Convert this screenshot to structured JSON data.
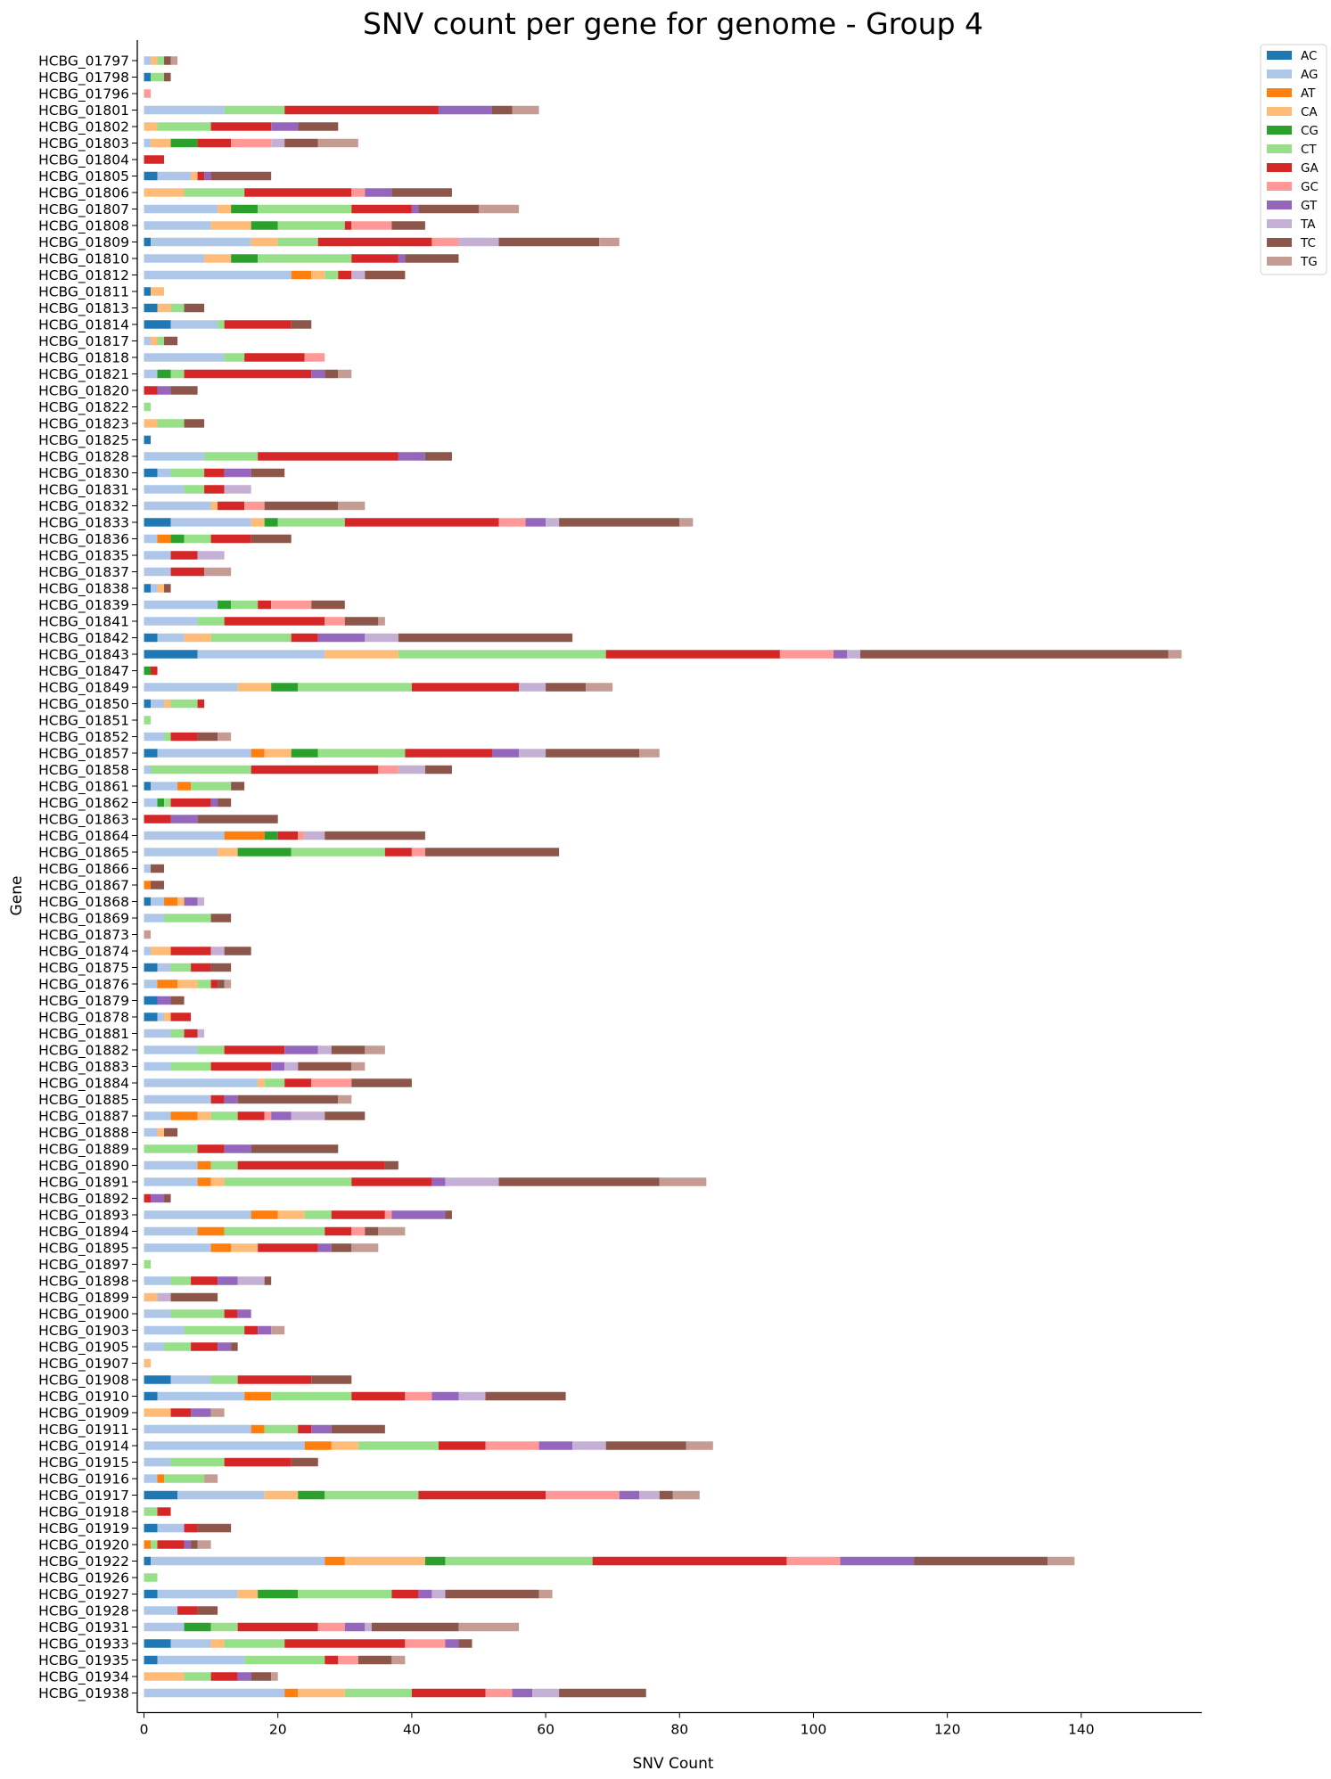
{
  "chart_data": {
    "type": "bar",
    "orientation": "horizontal",
    "stacked": true,
    "title": "SNV count per gene for genome - Group 4",
    "xlabel": "SNV Count",
    "ylabel": "Gene",
    "xlim": [
      -1,
      158
    ],
    "xticks": [
      0,
      20,
      40,
      60,
      80,
      100,
      120,
      140
    ],
    "grid": false,
    "legend_position": "outside-top-right",
    "categories": [
      "HCBG_01797",
      "HCBG_01798",
      "HCBG_01796",
      "HCBG_01801",
      "HCBG_01802",
      "HCBG_01803",
      "HCBG_01804",
      "HCBG_01805",
      "HCBG_01806",
      "HCBG_01807",
      "HCBG_01808",
      "HCBG_01809",
      "HCBG_01810",
      "HCBG_01812",
      "HCBG_01811",
      "HCBG_01813",
      "HCBG_01814",
      "HCBG_01817",
      "HCBG_01818",
      "HCBG_01821",
      "HCBG_01820",
      "HCBG_01822",
      "HCBG_01823",
      "HCBG_01825",
      "HCBG_01828",
      "HCBG_01830",
      "HCBG_01831",
      "HCBG_01832",
      "HCBG_01833",
      "HCBG_01836",
      "HCBG_01835",
      "HCBG_01837",
      "HCBG_01838",
      "HCBG_01839",
      "HCBG_01841",
      "HCBG_01842",
      "HCBG_01843",
      "HCBG_01847",
      "HCBG_01849",
      "HCBG_01850",
      "HCBG_01851",
      "HCBG_01852",
      "HCBG_01857",
      "HCBG_01858",
      "HCBG_01861",
      "HCBG_01862",
      "HCBG_01863",
      "HCBG_01864",
      "HCBG_01865",
      "HCBG_01866",
      "HCBG_01867",
      "HCBG_01868",
      "HCBG_01869",
      "HCBG_01873",
      "HCBG_01874",
      "HCBG_01875",
      "HCBG_01876",
      "HCBG_01879",
      "HCBG_01878",
      "HCBG_01881",
      "HCBG_01882",
      "HCBG_01883",
      "HCBG_01884",
      "HCBG_01885",
      "HCBG_01887",
      "HCBG_01888",
      "HCBG_01889",
      "HCBG_01890",
      "HCBG_01891",
      "HCBG_01892",
      "HCBG_01893",
      "HCBG_01894",
      "HCBG_01895",
      "HCBG_01897",
      "HCBG_01898",
      "HCBG_01899",
      "HCBG_01900",
      "HCBG_01903",
      "HCBG_01905",
      "HCBG_01907",
      "HCBG_01908",
      "HCBG_01910",
      "HCBG_01909",
      "HCBG_01911",
      "HCBG_01914",
      "HCBG_01915",
      "HCBG_01916",
      "HCBG_01917",
      "HCBG_01918",
      "HCBG_01919",
      "HCBG_01920",
      "HCBG_01922",
      "HCBG_01926",
      "HCBG_01927",
      "HCBG_01928",
      "HCBG_01931",
      "HCBG_01933",
      "HCBG_01935",
      "HCBG_01934",
      "HCBG_01938"
    ],
    "series": [
      {
        "name": "AC",
        "color": "#1f77b4",
        "values": [
          0,
          1,
          0,
          0,
          0,
          0,
          0,
          2,
          0,
          0,
          0,
          1,
          0,
          0,
          1,
          2,
          4,
          0,
          0,
          0,
          0,
          0,
          0,
          1,
          0,
          2,
          0,
          0,
          4,
          0,
          0,
          0,
          1,
          0,
          0,
          2,
          8,
          0,
          0,
          1,
          0,
          0,
          2,
          0,
          1,
          0,
          0,
          0,
          0,
          0,
          0,
          1,
          0,
          0,
          0,
          2,
          0,
          2,
          2,
          0,
          0,
          0,
          0,
          0,
          0,
          0,
          0,
          0,
          0,
          0,
          0,
          0,
          0,
          0,
          0,
          0,
          0,
          0,
          0,
          0,
          4,
          2,
          0,
          0,
          0,
          0,
          0,
          5,
          0,
          2,
          0,
          1,
          0,
          2,
          0,
          0,
          4,
          2,
          0,
          0
        ]
      },
      {
        "name": "AG",
        "color": "#aec7e8",
        "values": [
          1,
          0,
          0,
          12,
          0,
          1,
          0,
          5,
          0,
          11,
          10,
          15,
          9,
          22,
          0,
          0,
          7,
          1,
          12,
          2,
          0,
          0,
          0,
          0,
          9,
          2,
          6,
          10,
          12,
          2,
          4,
          4,
          1,
          11,
          8,
          4,
          19,
          0,
          14,
          2,
          0,
          3,
          14,
          1,
          4,
          2,
          0,
          12,
          11,
          1,
          0,
          2,
          3,
          0,
          1,
          2,
          2,
          0,
          1,
          4,
          8,
          4,
          17,
          10,
          4,
          2,
          0,
          8,
          8,
          0,
          16,
          8,
          10,
          0,
          4,
          0,
          4,
          6,
          3,
          0,
          6,
          13,
          0,
          16,
          24,
          4,
          2,
          13,
          0,
          4,
          0,
          26,
          0,
          12,
          5,
          6,
          6,
          13,
          0,
          21
        ]
      },
      {
        "name": "AT",
        "color": "#ff7f0e",
        "values": [
          0,
          0,
          0,
          0,
          0,
          0,
          0,
          0,
          0,
          0,
          0,
          0,
          0,
          3,
          0,
          0,
          0,
          0,
          0,
          0,
          0,
          0,
          0,
          0,
          0,
          0,
          0,
          0,
          0,
          2,
          0,
          0,
          0,
          0,
          0,
          0,
          0,
          0,
          0,
          0,
          0,
          0,
          2,
          0,
          2,
          0,
          0,
          6,
          0,
          0,
          1,
          2,
          0,
          0,
          0,
          0,
          3,
          0,
          0,
          0,
          0,
          0,
          0,
          0,
          4,
          0,
          0,
          2,
          2,
          0,
          4,
          4,
          3,
          0,
          0,
          0,
          0,
          0,
          0,
          0,
          0,
          4,
          0,
          2,
          4,
          0,
          1,
          0,
          0,
          0,
          1,
          3,
          0,
          0,
          0,
          0,
          0,
          0,
          0,
          2
        ]
      },
      {
        "name": "CA",
        "color": "#ffbb78",
        "values": [
          1,
          0,
          0,
          0,
          2,
          3,
          0,
          1,
          6,
          2,
          6,
          4,
          4,
          2,
          2,
          2,
          0,
          1,
          0,
          0,
          0,
          0,
          2,
          0,
          0,
          0,
          0,
          1,
          2,
          0,
          0,
          0,
          1,
          0,
          0,
          4,
          11,
          0,
          5,
          1,
          0,
          0,
          4,
          0,
          0,
          0,
          0,
          0,
          3,
          0,
          0,
          1,
          0,
          0,
          3,
          0,
          3,
          0,
          1,
          0,
          0,
          0,
          1,
          0,
          2,
          1,
          0,
          0,
          2,
          0,
          4,
          0,
          4,
          0,
          0,
          2,
          0,
          0,
          0,
          1,
          0,
          0,
          4,
          0,
          4,
          0,
          0,
          5,
          0,
          0,
          0,
          12,
          0,
          3,
          0,
          0,
          2,
          0,
          6,
          7
        ]
      },
      {
        "name": "CG",
        "color": "#2ca02c",
        "values": [
          0,
          0,
          0,
          0,
          0,
          4,
          0,
          0,
          0,
          4,
          4,
          0,
          4,
          0,
          0,
          0,
          0,
          0,
          0,
          2,
          0,
          0,
          0,
          0,
          0,
          0,
          0,
          0,
          2,
          2,
          0,
          0,
          0,
          2,
          0,
          0,
          0,
          1,
          4,
          0,
          0,
          0,
          4,
          0,
          0,
          1,
          0,
          2,
          8,
          0,
          0,
          0,
          0,
          0,
          0,
          0,
          0,
          0,
          0,
          0,
          0,
          0,
          0,
          0,
          0,
          0,
          0,
          0,
          0,
          0,
          0,
          0,
          0,
          0,
          0,
          0,
          0,
          0,
          0,
          0,
          0,
          0,
          0,
          0,
          0,
          0,
          0,
          4,
          0,
          0,
          0,
          3,
          0,
          6,
          0,
          4,
          0,
          0,
          0,
          0
        ]
      },
      {
        "name": "CT",
        "color": "#98df8a",
        "values": [
          1,
          2,
          0,
          9,
          8,
          0,
          0,
          0,
          9,
          14,
          10,
          6,
          14,
          2,
          0,
          2,
          1,
          1,
          3,
          2,
          0,
          1,
          4,
          0,
          8,
          5,
          3,
          0,
          10,
          4,
          0,
          0,
          0,
          4,
          4,
          12,
          31,
          0,
          17,
          4,
          1,
          1,
          13,
          15,
          6,
          1,
          0,
          0,
          14,
          0,
          0,
          0,
          7,
          0,
          0,
          3,
          2,
          0,
          0,
          2,
          4,
          6,
          3,
          0,
          4,
          0,
          8,
          4,
          19,
          0,
          4,
          15,
          0,
          1,
          3,
          0,
          8,
          9,
          4,
          0,
          4,
          12,
          0,
          5,
          12,
          8,
          6,
          14,
          2,
          0,
          1,
          22,
          2,
          14,
          0,
          4,
          9,
          12,
          4,
          10
        ]
      },
      {
        "name": "GA",
        "color": "#d62728",
        "values": [
          0,
          0,
          0,
          23,
          9,
          5,
          3,
          1,
          16,
          9,
          1,
          17,
          7,
          2,
          0,
          0,
          10,
          0,
          9,
          19,
          2,
          0,
          0,
          0,
          21,
          3,
          3,
          4,
          23,
          6,
          4,
          5,
          0,
          2,
          15,
          4,
          26,
          1,
          16,
          1,
          0,
          4,
          13,
          19,
          0,
          6,
          4,
          3,
          4,
          0,
          0,
          0,
          0,
          0,
          6,
          3,
          1,
          0,
          3,
          2,
          9,
          9,
          4,
          2,
          4,
          0,
          4,
          22,
          12,
          1,
          8,
          4,
          9,
          0,
          4,
          0,
          2,
          2,
          4,
          0,
          11,
          8,
          3,
          2,
          7,
          10,
          0,
          19,
          2,
          2,
          4,
          29,
          0,
          4,
          3,
          12,
          18,
          2,
          4,
          11
        ]
      },
      {
        "name": "GC",
        "color": "#ff9896",
        "values": [
          0,
          0,
          1,
          0,
          0,
          6,
          0,
          0,
          2,
          0,
          6,
          4,
          0,
          0,
          0,
          0,
          0,
          0,
          3,
          0,
          0,
          0,
          0,
          0,
          0,
          0,
          0,
          3,
          4,
          0,
          0,
          0,
          0,
          6,
          3,
          0,
          8,
          0,
          0,
          0,
          0,
          0,
          0,
          3,
          0,
          0,
          0,
          1,
          2,
          0,
          0,
          0,
          0,
          0,
          0,
          0,
          0,
          0,
          0,
          0,
          0,
          0,
          6,
          0,
          1,
          0,
          0,
          0,
          0,
          0,
          1,
          2,
          0,
          0,
          0,
          0,
          0,
          0,
          0,
          0,
          0,
          4,
          0,
          0,
          8,
          0,
          0,
          11,
          0,
          0,
          0,
          8,
          0,
          0,
          0,
          4,
          6,
          3,
          0,
          4
        ]
      },
      {
        "name": "GT",
        "color": "#9467bd",
        "values": [
          0,
          0,
          0,
          8,
          4,
          0,
          0,
          1,
          4,
          1,
          0,
          0,
          1,
          0,
          0,
          0,
          0,
          0,
          0,
          2,
          2,
          0,
          0,
          0,
          4,
          4,
          0,
          0,
          3,
          0,
          0,
          0,
          0,
          0,
          0,
          7,
          2,
          0,
          0,
          0,
          0,
          0,
          4,
          0,
          0,
          1,
          4,
          0,
          0,
          0,
          0,
          2,
          0,
          0,
          0,
          0,
          0,
          2,
          0,
          0,
          5,
          2,
          0,
          2,
          3,
          0,
          4,
          0,
          2,
          2,
          8,
          0,
          2,
          0,
          3,
          0,
          2,
          2,
          2,
          0,
          0,
          4,
          3,
          3,
          5,
          0,
          0,
          3,
          0,
          0,
          1,
          11,
          0,
          2,
          0,
          3,
          2,
          0,
          2,
          3
        ]
      },
      {
        "name": "TA",
        "color": "#c5b0d5",
        "values": [
          0,
          0,
          0,
          0,
          0,
          2,
          0,
          0,
          0,
          0,
          0,
          6,
          0,
          2,
          0,
          0,
          0,
          0,
          0,
          0,
          0,
          0,
          0,
          0,
          0,
          0,
          4,
          0,
          2,
          0,
          4,
          0,
          0,
          0,
          0,
          5,
          2,
          0,
          4,
          0,
          0,
          0,
          4,
          4,
          0,
          0,
          0,
          3,
          0,
          0,
          0,
          1,
          0,
          0,
          2,
          0,
          0,
          0,
          0,
          1,
          2,
          2,
          0,
          0,
          5,
          0,
          0,
          0,
          8,
          0,
          0,
          0,
          0,
          0,
          4,
          2,
          0,
          0,
          0,
          0,
          0,
          4,
          0,
          0,
          5,
          0,
          0,
          3,
          0,
          0,
          0,
          0,
          0,
          2,
          0,
          1,
          0,
          0,
          0,
          4
        ]
      },
      {
        "name": "TC",
        "color": "#8c564b",
        "values": [
          1,
          1,
          0,
          3,
          6,
          5,
          0,
          9,
          9,
          9,
          5,
          15,
          8,
          6,
          0,
          3,
          3,
          2,
          0,
          2,
          4,
          0,
          3,
          0,
          4,
          5,
          0,
          11,
          18,
          6,
          0,
          0,
          1,
          5,
          5,
          26,
          46,
          0,
          6,
          0,
          0,
          3,
          14,
          4,
          2,
          2,
          12,
          15,
          20,
          2,
          2,
          0,
          3,
          0,
          4,
          3,
          1,
          2,
          0,
          0,
          5,
          8,
          9,
          15,
          6,
          2,
          13,
          2,
          24,
          1,
          1,
          2,
          3,
          0,
          1,
          7,
          0,
          0,
          1,
          0,
          6,
          12,
          0,
          8,
          12,
          4,
          0,
          2,
          0,
          5,
          1,
          20,
          0,
          14,
          3,
          13,
          2,
          5,
          3,
          13
        ]
      },
      {
        "name": "TG",
        "color": "#c49c94",
        "values": [
          1,
          0,
          0,
          4,
          0,
          6,
          0,
          0,
          0,
          6,
          0,
          3,
          0,
          0,
          0,
          0,
          0,
          0,
          0,
          2,
          0,
          0,
          0,
          0,
          0,
          0,
          0,
          4,
          2,
          0,
          0,
          4,
          0,
          0,
          1,
          0,
          2,
          0,
          4,
          0,
          0,
          2,
          3,
          0,
          0,
          0,
          0,
          0,
          0,
          0,
          0,
          0,
          0,
          1,
          0,
          0,
          1,
          0,
          0,
          0,
          3,
          2,
          0,
          2,
          0,
          0,
          0,
          0,
          7,
          0,
          0,
          4,
          4,
          0,
          0,
          0,
          0,
          2,
          0,
          0,
          0,
          0,
          2,
          0,
          4,
          0,
          2,
          4,
          0,
          0,
          2,
          4,
          0,
          2,
          0,
          9,
          0,
          2,
          1,
          0
        ]
      }
    ]
  }
}
